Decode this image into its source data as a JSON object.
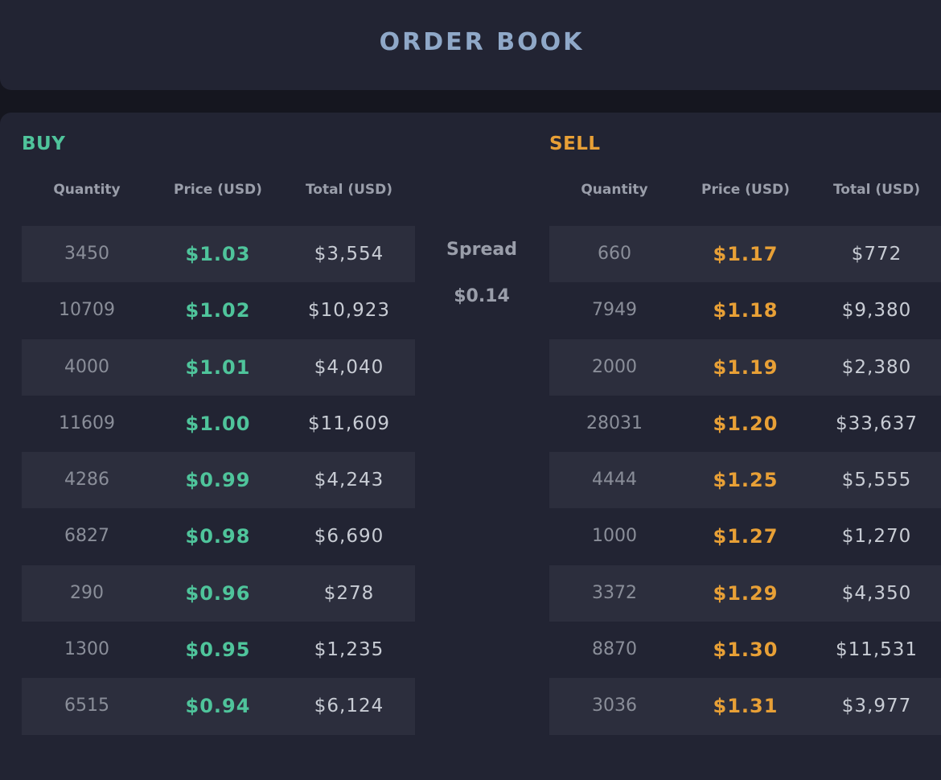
{
  "header": {
    "title": "ORDER BOOK"
  },
  "buy": {
    "title": "BUY",
    "columns": [
      "Quantity",
      "Price (USD)",
      "Total (USD)"
    ],
    "rows": [
      {
        "quantity": "3450",
        "price": "$1.03",
        "total": "$3,554"
      },
      {
        "quantity": "10709",
        "price": "$1.02",
        "total": "$10,923"
      },
      {
        "quantity": "4000",
        "price": "$1.01",
        "total": "$4,040"
      },
      {
        "quantity": "11609",
        "price": "$1.00",
        "total": "$11,609"
      },
      {
        "quantity": "4286",
        "price": "$0.99",
        "total": "$4,243"
      },
      {
        "quantity": "6827",
        "price": "$0.98",
        "total": "$6,690"
      },
      {
        "quantity": "290",
        "price": "$0.96",
        "total": "$278"
      },
      {
        "quantity": "1300",
        "price": "$0.95",
        "total": "$1,235"
      },
      {
        "quantity": "6515",
        "price": "$0.94",
        "total": "$6,124"
      }
    ]
  },
  "spread": {
    "label": "Spread",
    "value": "$0.14"
  },
  "sell": {
    "title": "SELL",
    "columns": [
      "Quantity",
      "Price (USD)",
      "Total (USD)"
    ],
    "rows": [
      {
        "quantity": "660",
        "price": "$1.17",
        "total": "$772"
      },
      {
        "quantity": "7949",
        "price": "$1.18",
        "total": "$9,380"
      },
      {
        "quantity": "2000",
        "price": "$1.19",
        "total": "$2,380"
      },
      {
        "quantity": "28031",
        "price": "$1.20",
        "total": "$33,637"
      },
      {
        "quantity": "4444",
        "price": "$1.25",
        "total": "$5,555"
      },
      {
        "quantity": "1000",
        "price": "$1.27",
        "total": "$1,270"
      },
      {
        "quantity": "3372",
        "price": "$1.29",
        "total": "$4,350"
      },
      {
        "quantity": "8870",
        "price": "$1.30",
        "total": "$11,531"
      },
      {
        "quantity": "3036",
        "price": "$1.31",
        "total": "$3,977"
      }
    ]
  },
  "colors": {
    "buy": "#4fc49b",
    "sell": "#e8a036",
    "header_text": "#8fa8c8",
    "panel": "#222433",
    "row_stripe": "#2c2e3d"
  }
}
